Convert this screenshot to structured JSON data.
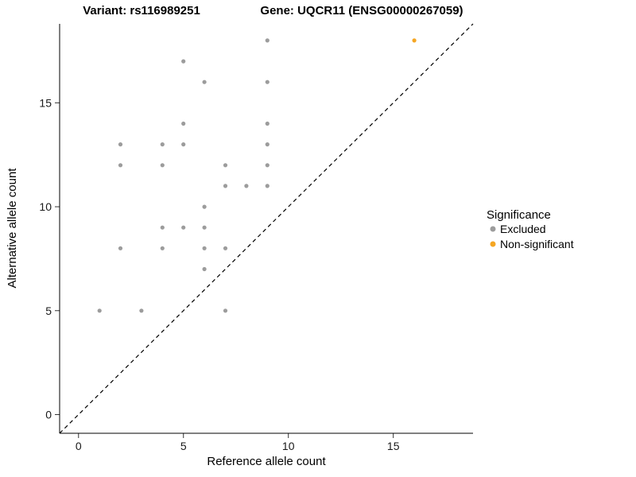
{
  "chart_data": {
    "type": "scatter",
    "title_left": "Variant: rs116989251",
    "title_right": "Gene: UQCR11 (ENSG00000267059)",
    "xlabel": "Reference allele count",
    "ylabel": "Alternative allele count",
    "x_ticks": [
      0,
      5,
      10,
      15
    ],
    "y_ticks": [
      0,
      5,
      10,
      15
    ],
    "x_range": [
      -0.9,
      18.8
    ],
    "y_range": [
      -0.9,
      18.8
    ],
    "grid": false,
    "legend_position": "right",
    "legend_title": "Significance",
    "identity_line": {
      "style": "dashed",
      "color": "#000000",
      "from": [
        -0.9,
        -0.9
      ],
      "to": [
        18.8,
        18.8
      ]
    },
    "point_radius": 2.6,
    "legend_swatch_radius": 3.5,
    "series": [
      {
        "name": "Excluded",
        "color": "#9C9C9C",
        "points": [
          [
            1,
            5
          ],
          [
            3,
            5
          ],
          [
            7,
            5
          ],
          [
            6,
            7
          ],
          [
            2,
            8
          ],
          [
            4,
            8
          ],
          [
            6,
            8
          ],
          [
            7,
            8
          ],
          [
            4,
            9
          ],
          [
            5,
            9
          ],
          [
            6,
            9
          ],
          [
            6,
            10
          ],
          [
            7,
            11
          ],
          [
            8,
            11
          ],
          [
            9,
            11
          ],
          [
            2,
            12
          ],
          [
            4,
            12
          ],
          [
            7,
            12
          ],
          [
            9,
            12
          ],
          [
            2,
            13
          ],
          [
            4,
            13
          ],
          [
            5,
            13
          ],
          [
            9,
            13
          ],
          [
            5,
            14
          ],
          [
            9,
            14
          ],
          [
            6,
            16
          ],
          [
            9,
            16
          ],
          [
            5,
            17
          ],
          [
            9,
            18
          ]
        ]
      },
      {
        "name": "Non-significant",
        "color": "#F5A623",
        "points": [
          [
            16,
            18
          ]
        ]
      }
    ]
  }
}
